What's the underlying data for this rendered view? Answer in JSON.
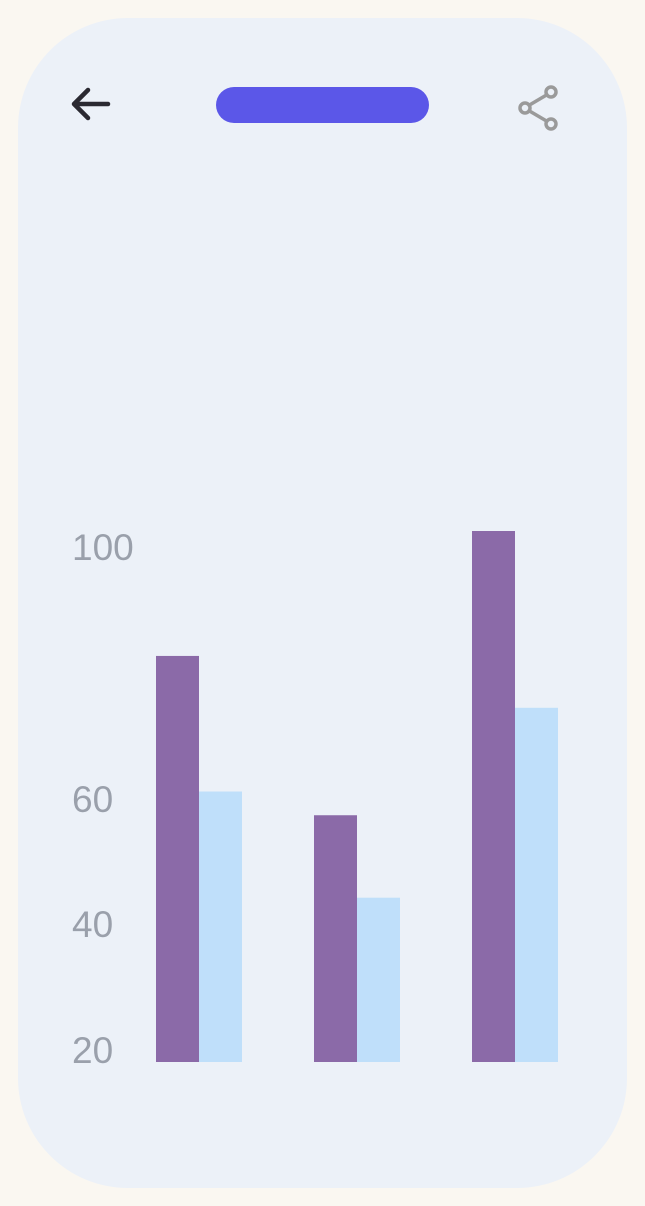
{
  "header": {
    "back_icon": "arrow-left-icon",
    "share_icon": "share-icon",
    "title_pill_color": "#5b57e8"
  },
  "chart_data": {
    "type": "bar",
    "categories": [
      "",
      "",
      ""
    ],
    "series": [
      {
        "values": [
          80,
          54.5,
          100
        ],
        "color": "#8b6aa8"
      },
      {
        "values": [
          58.3,
          41.3,
          71.7
        ],
        "color": "#bfdffa"
      }
    ],
    "yticks": [
      "20",
      "40",
      "60",
      "100"
    ],
    "ylim": [
      15,
      100
    ],
    "grid": false,
    "legend": "none"
  }
}
